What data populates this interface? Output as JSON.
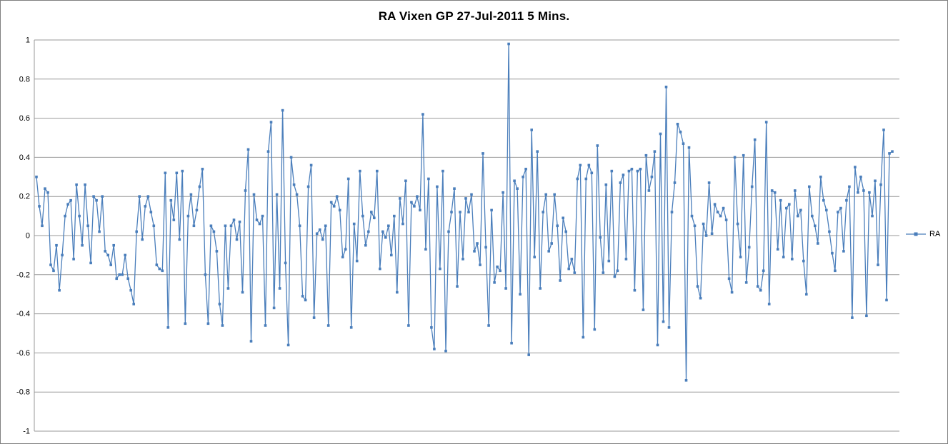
{
  "chart": {
    "title": "RA Vixen GP 27-Jul-2011 5 Mins.",
    "legend_label": "RA"
  },
  "colors": {
    "series": "#4A7EBB",
    "gridline": "#9a9a9a",
    "axis": "#9a9a9a",
    "frame_border": "#808080",
    "background": "#ffffff",
    "title_text": "#000000"
  },
  "chart_data": {
    "type": "line",
    "title": "RA Vixen GP 27-Jul-2011 5 Mins.",
    "xlabel": "",
    "ylabel": "",
    "ylim": [
      -1,
      1
    ],
    "ytick_step": 0.2,
    "ytick_labels": [
      "1",
      "0.8",
      "0.6",
      "0.4",
      "0.2",
      "0",
      "-0.2",
      "-0.4",
      "-0.6",
      "-0.8",
      "-1"
    ],
    "x_axis_labels_visible": false,
    "grid": true,
    "legend_position": "right",
    "marker": "square",
    "series": [
      {
        "name": "RA",
        "color": "#4A7EBB",
        "values": [
          0.3,
          0.15,
          0.05,
          0.24,
          0.22,
          -0.15,
          -0.18,
          -0.05,
          -0.28,
          -0.1,
          0.1,
          0.16,
          0.18,
          -0.12,
          0.26,
          0.1,
          -0.05,
          0.26,
          0.05,
          -0.14,
          0.2,
          0.18,
          0.02,
          0.2,
          -0.08,
          -0.1,
          -0.15,
          -0.05,
          -0.22,
          -0.2,
          -0.2,
          -0.1,
          -0.22,
          -0.28,
          -0.35,
          0.02,
          0.2,
          -0.02,
          0.15,
          0.2,
          0.12,
          0.05,
          -0.15,
          -0.17,
          -0.18,
          0.32,
          -0.47,
          0.18,
          0.08,
          0.32,
          -0.02,
          0.33,
          -0.45,
          0.1,
          0.21,
          0.05,
          0.13,
          0.25,
          0.34,
          -0.2,
          -0.45,
          0.05,
          0.02,
          -0.08,
          -0.35,
          -0.46,
          0.05,
          -0.27,
          0.05,
          0.08,
          -0.02,
          0.07,
          -0.29,
          0.23,
          0.44,
          -0.54,
          0.21,
          0.08,
          0.06,
          0.1,
          -0.46,
          0.43,
          0.58,
          -0.37,
          0.21,
          -0.27,
          0.64,
          -0.14,
          -0.56,
          0.4,
          0.26,
          0.21,
          0.05,
          -0.31,
          -0.33,
          0.25,
          0.36,
          -0.42,
          0.01,
          0.03,
          -0.02,
          0.05,
          -0.46,
          0.17,
          0.15,
          0.2,
          0.13,
          -0.11,
          -0.07,
          0.29,
          -0.47,
          0.06,
          -0.13,
          0.33,
          0.1,
          -0.05,
          0.02,
          0.12,
          0.09,
          0.33,
          -0.17,
          0.02,
          -0.01,
          0.05,
          -0.1,
          0.1,
          -0.29,
          0.19,
          0.06,
          0.28,
          -0.46,
          0.17,
          0.15,
          0.2,
          0.13,
          0.62,
          -0.07,
          0.29,
          -0.47,
          -0.58,
          0.25,
          -0.17,
          0.33,
          -0.59,
          0.02,
          0.12,
          0.24,
          -0.26,
          0.12,
          -0.12,
          0.19,
          0.12,
          0.21,
          -0.08,
          -0.04,
          -0.15,
          0.42,
          -0.06,
          -0.46,
          0.13,
          -0.24,
          -0.16,
          -0.18,
          0.22,
          -0.27,
          0.98,
          -0.55,
          0.28,
          0.24,
          -0.3,
          0.3,
          0.34,
          -0.61,
          0.54,
          -0.11,
          0.43,
          -0.27,
          0.12,
          0.21,
          -0.08,
          -0.04,
          0.21,
          0.05,
          -0.23,
          0.09,
          0.02,
          -0.17,
          -0.12,
          -0.19,
          0.29,
          0.36,
          -0.52,
          0.29,
          0.36,
          0.32,
          -0.48,
          0.46,
          -0.01,
          -0.19,
          0.26,
          -0.13,
          0.33,
          -0.21,
          -0.18,
          0.27,
          0.31,
          -0.12,
          0.33,
          0.34,
          -0.28,
          0.33,
          0.34,
          -0.38,
          0.41,
          0.23,
          0.3,
          0.43,
          -0.56,
          0.52,
          -0.44,
          0.76,
          -0.47,
          0.12,
          0.27,
          0.57,
          0.53,
          0.47,
          -0.74,
          0.45,
          0.1,
          0.05,
          -0.26,
          -0.32,
          0.06,
          0.0,
          0.27,
          0.01,
          0.16,
          0.12,
          0.1,
          0.14,
          0.08,
          -0.22,
          -0.29,
          0.4,
          0.06,
          -0.11,
          0.41,
          -0.24,
          -0.06,
          0.25,
          0.49,
          -0.26,
          -0.28,
          -0.18,
          0.58,
          -0.35,
          0.23,
          0.22,
          -0.07,
          0.18,
          -0.11,
          0.14,
          0.16,
          -0.12,
          0.23,
          0.1,
          0.13,
          -0.13,
          -0.3,
          0.25,
          0.1,
          0.05,
          -0.04,
          0.3,
          0.18,
          0.13,
          0.02,
          -0.09,
          -0.18,
          0.12,
          0.14,
          -0.08,
          0.18,
          0.25,
          -0.42,
          0.35,
          0.22,
          0.3,
          0.23,
          -0.41,
          0.22,
          0.1,
          0.28,
          -0.15,
          0.26,
          0.54,
          -0.33,
          0.42,
          0.43
        ]
      }
    ]
  }
}
